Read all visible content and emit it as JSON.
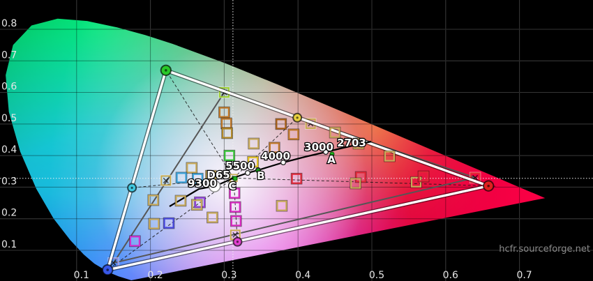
{
  "diagram": {
    "watermark": "hcfr.sourceforge.net"
  },
  "chart_data": {
    "type": "scatter",
    "title": "",
    "xlabel": "",
    "ylabel": "",
    "xlim": [
      0,
      0.8
    ],
    "ylim": [
      0,
      0.9
    ],
    "grid": true,
    "x_tick_labels": [
      "0.1",
      "0.2",
      "0.3",
      "0.4",
      "0.5",
      "0.6",
      "0.7"
    ],
    "y_tick_labels": [
      "0.1",
      "0.2",
      "0.3",
      "0.4",
      "0.5",
      "0.6",
      "0.7",
      "0.8"
    ],
    "watermark": "hcfr.sourceforge.net",
    "spectral_locus": [
      [
        0.1741,
        0.005
      ],
      [
        0.1566,
        0.0177
      ],
      [
        0.144,
        0.0297
      ],
      [
        0.1241,
        0.0578
      ],
      [
        0.1096,
        0.0868
      ],
      [
        0.0913,
        0.1327
      ],
      [
        0.0687,
        0.2007
      ],
      [
        0.0454,
        0.295
      ],
      [
        0.0235,
        0.4127
      ],
      [
        0.0082,
        0.5384
      ],
      [
        0.0039,
        0.6548
      ],
      [
        0.0139,
        0.7502
      ],
      [
        0.0389,
        0.812
      ],
      [
        0.0743,
        0.8338
      ],
      [
        0.1142,
        0.8262
      ],
      [
        0.1547,
        0.8059
      ],
      [
        0.1929,
        0.7816
      ],
      [
        0.2296,
        0.7543
      ],
      [
        0.3016,
        0.6923
      ],
      [
        0.3731,
        0.6245
      ],
      [
        0.4441,
        0.5547
      ],
      [
        0.5125,
        0.4866
      ],
      [
        0.5752,
        0.4242
      ],
      [
        0.627,
        0.3725
      ],
      [
        0.6658,
        0.334
      ],
      [
        0.6915,
        0.3083
      ],
      [
        0.7079,
        0.292
      ],
      [
        0.723,
        0.277
      ],
      [
        0.7347,
        0.2653
      ]
    ],
    "reference_gamut": {
      "name": "reference-rec709",
      "line_color": "#565656",
      "points": {
        "red": {
          "x": 0.64,
          "y": 0.33,
          "marker_color": "#e03030"
        },
        "green": {
          "x": 0.3,
          "y": 0.6,
          "marker_color": "#9fd030"
        },
        "blue": {
          "x": 0.15,
          "y": 0.06,
          "marker_color": "#9090e0"
        },
        "yellow": {
          "x": 0.417,
          "y": 0.501,
          "marker_color": "#c8aa50"
        },
        "cyan": {
          "x": 0.221,
          "y": 0.321,
          "marker_color": "#c8aa50"
        },
        "magenta": {
          "x": 0.315,
          "y": 0.149,
          "marker_color": "#c8aa50"
        },
        "white_d65": {
          "x": 0.3127,
          "y": 0.329,
          "marker_color": "#c8aa50"
        }
      }
    },
    "measured_gamut": {
      "name": "measured-display",
      "line_color": "#ffffff",
      "points": {
        "red": {
          "x": 0.658,
          "y": 0.304,
          "marker_color": "#e02020"
        },
        "green": {
          "x": 0.221,
          "y": 0.67,
          "marker_color": "#28c828"
        },
        "blue": {
          "x": 0.142,
          "y": 0.038,
          "marker_color": "#3858e8"
        },
        "yellow": {
          "x": 0.399,
          "y": 0.52,
          "marker_color": "#e8d040"
        },
        "cyan": {
          "x": 0.175,
          "y": 0.298,
          "marker_color": "#40c8e0"
        },
        "magenta": {
          "x": 0.318,
          "y": 0.127,
          "marker_color": "#e040d0"
        },
        "white": {
          "x": 0.287,
          "y": 0.303,
          "marker_color": "#ffffff"
        }
      }
    },
    "blackbody_curve": {
      "points": [
        [
          0.2259,
          0.2392
        ],
        [
          0.2467,
          0.2678
        ],
        [
          0.2656,
          0.2943
        ],
        [
          0.2873,
          0.3032
        ],
        [
          0.3006,
          0.3164
        ],
        [
          0.3129,
          0.3297
        ],
        [
          0.3318,
          0.3451
        ],
        [
          0.3459,
          0.354
        ],
        [
          0.38,
          0.3783
        ],
        [
          0.4093,
          0.3959
        ],
        [
          0.4376,
          0.4114
        ],
        [
          0.4613,
          0.4246
        ],
        [
          0.483,
          0.4356
        ],
        [
          0.4991,
          0.4445
        ]
      ],
      "tick_points": [
        [
          0.3318,
          0.3451
        ],
        [
          0.38,
          0.3783
        ],
        [
          0.4376,
          0.4114
        ],
        [
          0.483,
          0.4356
        ],
        [
          0.3459,
          0.354
        ]
      ],
      "green_dots": [
        [
          0.3148,
          0.3274
        ],
        [
          0.346,
          0.352
        ],
        [
          0.4461,
          0.4048
        ],
        [
          0.4887,
          0.4423
        ]
      ],
      "labels": [
        {
          "text": "9300",
          "x": 0.2703,
          "y": 0.312
        },
        {
          "text": "D65",
          "x": 0.2921,
          "y": 0.3385
        },
        {
          "text": "5500",
          "x": 0.3214,
          "y": 0.3672
        },
        {
          "text": "4000",
          "x": 0.3696,
          "y": 0.3981
        },
        {
          "text": "3000",
          "x": 0.4282,
          "y": 0.4268
        },
        {
          "text": "2703",
          "x": 0.4726,
          "y": 0.44
        },
        {
          "text": "A",
          "x": 0.4452,
          "y": 0.3871
        },
        {
          "text": "B",
          "x": 0.3497,
          "y": 0.3363
        },
        {
          "text": "C",
          "x": 0.311,
          "y": 0.3032
        }
      ]
    },
    "crosshair": {
      "x": 0.3118,
      "y": 0.328
    },
    "saturation_points": [
      {
        "x": 0.3,
        "y": 0.537,
        "color": "#c07828"
      },
      {
        "x": 0.303,
        "y": 0.502,
        "color": "#c07828"
      },
      {
        "x": 0.304,
        "y": 0.471,
        "color": "#b08828"
      },
      {
        "x": 0.307,
        "y": 0.4,
        "color": "#38c838"
      },
      {
        "x": 0.34,
        "y": 0.438,
        "color": "#c8aa5a"
      },
      {
        "x": 0.377,
        "y": 0.5,
        "color": "#a86018"
      },
      {
        "x": 0.394,
        "y": 0.467,
        "color": "#c07828"
      },
      {
        "x": 0.368,
        "y": 0.425,
        "color": "#c07828"
      },
      {
        "x": 0.339,
        "y": 0.38,
        "color": "#e0c020"
      },
      {
        "x": 0.256,
        "y": 0.361,
        "color": "#c8aa5a"
      },
      {
        "x": 0.242,
        "y": 0.33,
        "color": "#38a0d8"
      },
      {
        "x": 0.264,
        "y": 0.327,
        "color": "#38a0d8"
      },
      {
        "x": 0.282,
        "y": 0.336,
        "color": "#c8aa5a"
      },
      {
        "x": 0.204,
        "y": 0.259,
        "color": "#c8aa5a"
      },
      {
        "x": 0.241,
        "y": 0.257,
        "color": "#c8aa5a"
      },
      {
        "x": 0.267,
        "y": 0.252,
        "color": "#9040d8"
      },
      {
        "x": 0.263,
        "y": 0.244,
        "color": "#c8aa5a"
      },
      {
        "x": 0.225,
        "y": 0.186,
        "color": "#4848e0"
      },
      {
        "x": 0.205,
        "y": 0.184,
        "color": "#c8aa5a"
      },
      {
        "x": 0.284,
        "y": 0.204,
        "color": "#c8aa5a"
      },
      {
        "x": 0.179,
        "y": 0.129,
        "color": "#d030d0"
      },
      {
        "x": 0.314,
        "y": 0.281,
        "color": "#d828c0"
      },
      {
        "x": 0.315,
        "y": 0.237,
        "color": "#d828c0"
      },
      {
        "x": 0.316,
        "y": 0.193,
        "color": "#d828c0"
      },
      {
        "x": 0.398,
        "y": 0.327,
        "color": "#e02838"
      },
      {
        "x": 0.378,
        "y": 0.241,
        "color": "#c8aa5a"
      },
      {
        "x": 0.45,
        "y": 0.473,
        "color": "#c8aa5a"
      },
      {
        "x": 0.482,
        "y": 0.438,
        "color": "#c8aa5a"
      },
      {
        "x": 0.524,
        "y": 0.398,
        "color": "#c8aa5a"
      },
      {
        "x": 0.56,
        "y": 0.316,
        "color": "#c8aa5a"
      },
      {
        "x": 0.57,
        "y": 0.334,
        "color": "#e02838"
      },
      {
        "x": 0.485,
        "y": 0.332,
        "color": "#e02838"
      },
      {
        "x": 0.478,
        "y": 0.312,
        "color": "#c8aa5a"
      }
    ]
  }
}
